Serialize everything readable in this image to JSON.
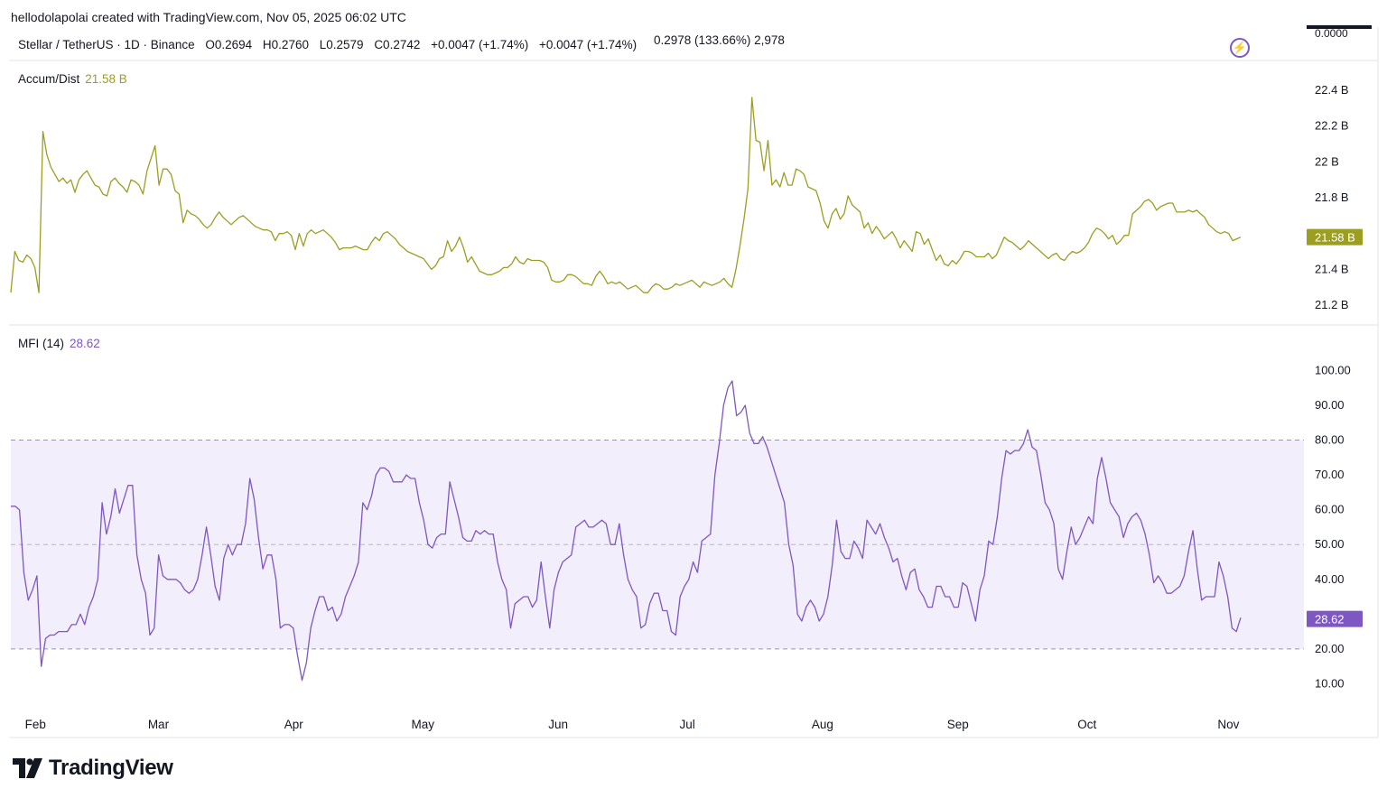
{
  "header": {
    "credit": "hellodolapolai created with TradingView.com, Nov 05, 2025 06:02 UTC",
    "symbol": "Stellar / TetherUS · 1D · Binance",
    "open": "O0.2694",
    "high": "H0.2760",
    "low": "L0.2579",
    "close": "C0.2742",
    "change1": "+0.0047 (+1.74%)",
    "change2": "+0.0047 (+1.74%)",
    "extra": "0.2978 (133.66%) 2,978",
    "top_scale_value": "0.0000",
    "bolt_icon": "lightning-bolt-icon"
  },
  "accum_dist": {
    "label": "Accum/Dist",
    "value_label": "21.58 B",
    "color": "#9c9e22",
    "ticks": [
      "22.4 B",
      "22.2 B",
      "22 B",
      "21.8 B",
      "21.4 B",
      "21.2 B"
    ]
  },
  "mfi": {
    "label": "MFI (14)",
    "value_label": "28.62",
    "color": "#7e57c2",
    "band_color": "#f2eefb",
    "ticks": [
      "100.00",
      "90.00",
      "80.00",
      "70.00",
      "60.00",
      "50.00",
      "40.00",
      "20.00",
      "10.00"
    ]
  },
  "x_axis": [
    "Feb",
    "Mar",
    "Apr",
    "May",
    "Jun",
    "Jul",
    "Aug",
    "Sep",
    "Oct",
    "Nov"
  ],
  "brand": "TradingView",
  "chart_data": [
    {
      "type": "line",
      "title": "Accum/Dist",
      "x_labels": [
        "Feb",
        "Mar",
        "Apr",
        "May",
        "Jun",
        "Jul",
        "Aug",
        "Sep",
        "Oct",
        "Nov"
      ],
      "ylim": [
        21.15,
        22.45
      ],
      "y_unit": "B",
      "last_value": 21.58,
      "series": [
        {
          "values": [
            21.27,
            21.5,
            21.45,
            21.44,
            21.48,
            21.46,
            21.41,
            21.27,
            22.17,
            22.04,
            21.97,
            21.93,
            21.89,
            21.91,
            21.88,
            21.9,
            21.83,
            21.9,
            21.93,
            21.95,
            21.91,
            21.87,
            21.86,
            21.82,
            21.81,
            21.89,
            21.91,
            21.88,
            21.86,
            21.83,
            21.9,
            21.89,
            21.87,
            21.82,
            21.95,
            22.02,
            22.09,
            21.87,
            21.96,
            21.96,
            21.93,
            21.84,
            21.82,
            21.66,
            21.73,
            21.71,
            21.7,
            21.68,
            21.65,
            21.63,
            21.65,
            21.69,
            21.72,
            21.69,
            21.67,
            21.65,
            21.67,
            21.69,
            21.7,
            21.68,
            21.66,
            21.64,
            21.63,
            21.62,
            21.62,
            21.61,
            21.56,
            21.6,
            21.6,
            21.61,
            21.59,
            21.51,
            21.6,
            21.53,
            21.6,
            21.62,
            21.6,
            21.61,
            21.62,
            21.6,
            21.58,
            21.55,
            21.51,
            21.52,
            21.52,
            21.52,
            21.53,
            21.52,
            21.51,
            21.51,
            21.55,
            21.58,
            21.56,
            21.6,
            21.61,
            21.59,
            21.57,
            21.54,
            21.52,
            21.5,
            21.49,
            21.48,
            21.47,
            21.46,
            21.43,
            21.4,
            21.42,
            21.46,
            21.47,
            21.56,
            21.5,
            21.53,
            21.58,
            21.52,
            21.44,
            21.47,
            21.43,
            21.39,
            21.38,
            21.37,
            21.37,
            21.38,
            21.39,
            21.41,
            21.41,
            21.43,
            21.47,
            21.44,
            21.43,
            21.46,
            21.45,
            21.45,
            21.45,
            21.44,
            21.41,
            21.34,
            21.33,
            21.33,
            21.34,
            21.37,
            21.37,
            21.36,
            21.34,
            21.32,
            21.32,
            21.31,
            21.36,
            21.39,
            21.36,
            21.32,
            21.33,
            21.32,
            21.33,
            21.31,
            21.29,
            21.3,
            21.31,
            21.29,
            21.27,
            21.27,
            21.3,
            21.32,
            21.31,
            21.29,
            21.29,
            21.3,
            21.32,
            21.31,
            21.32,
            21.33,
            21.34,
            21.32,
            21.3,
            21.33,
            21.32,
            21.31,
            21.32,
            21.33,
            21.35,
            21.32,
            21.3,
            21.4,
            21.53,
            21.68,
            21.85,
            22.36,
            22.12,
            22.11,
            21.95,
            22.12,
            21.87,
            21.9,
            21.86,
            21.94,
            21.87,
            21.87,
            21.96,
            21.95,
            21.93,
            21.86,
            21.85,
            21.84,
            21.77,
            21.67,
            21.63,
            21.71,
            21.74,
            21.68,
            21.71,
            21.81,
            21.76,
            21.74,
            21.72,
            21.63,
            21.66,
            21.6,
            21.64,
            21.61,
            21.57,
            21.59,
            21.61,
            21.57,
            21.52,
            21.56,
            21.53,
            21.5,
            21.61,
            21.6,
            21.54,
            21.57,
            21.51,
            21.45,
            21.48,
            21.43,
            21.42,
            21.45,
            21.43,
            21.46,
            21.5,
            21.5,
            21.49,
            21.47,
            21.47,
            21.47,
            21.49,
            21.46,
            21.48,
            21.53,
            21.58,
            21.56,
            21.55,
            21.53,
            21.51,
            21.53,
            21.56,
            21.54,
            21.52,
            21.5,
            21.48,
            21.46,
            21.48,
            21.49,
            21.46,
            21.45,
            21.48,
            21.5,
            21.49,
            21.5,
            21.52,
            21.55,
            21.6,
            21.63,
            21.62,
            21.6,
            21.57,
            21.59,
            21.54,
            21.56,
            21.59,
            21.59,
            21.71,
            21.73,
            21.75,
            21.78,
            21.79,
            21.77,
            21.73,
            21.75,
            21.76,
            21.77,
            21.77,
            21.72,
            21.72,
            21.72,
            21.73,
            21.72,
            21.73,
            21.71,
            21.69,
            21.65,
            21.63,
            21.61,
            21.6,
            21.61,
            21.6,
            21.56,
            21.57,
            21.58
          ]
        }
      ]
    },
    {
      "type": "line",
      "title": "MFI (14)",
      "x_labels": [
        "Feb",
        "Mar",
        "Apr",
        "May",
        "Jun",
        "Jul",
        "Aug",
        "Sep",
        "Oct",
        "Nov"
      ],
      "ylim": [
        0,
        104
      ],
      "bands": [
        20,
        50,
        80
      ],
      "last_value": 28.62,
      "series": [
        {
          "values": [
            61,
            61,
            60,
            42,
            34,
            37,
            41,
            15,
            23,
            24,
            24,
            25,
            25,
            25,
            27,
            27,
            30,
            27,
            32,
            35,
            40,
            62,
            53,
            58,
            66,
            59,
            63,
            67,
            67,
            47,
            40,
            36,
            24,
            26,
            47,
            41,
            40,
            40,
            40,
            39,
            37,
            36,
            37,
            40,
            47,
            55,
            47,
            38,
            34,
            46,
            50,
            47,
            50,
            50,
            56,
            69,
            63,
            52,
            43,
            47,
            47,
            40,
            26,
            27,
            27,
            26,
            18,
            11,
            16,
            26,
            31,
            35,
            35,
            31,
            32,
            28,
            30,
            35,
            38,
            41,
            45,
            62,
            60,
            64,
            70,
            72,
            72,
            71,
            68,
            68,
            68,
            70,
            69,
            69,
            62,
            57,
            50,
            49,
            52,
            53,
            53,
            68,
            63,
            58,
            52,
            51,
            51,
            54,
            53,
            54,
            53,
            53,
            45,
            40,
            37,
            26,
            33,
            34,
            35,
            35,
            32,
            34,
            45,
            35,
            26,
            37,
            42,
            45,
            46,
            47,
            55,
            56,
            57,
            55,
            55,
            56,
            57,
            56,
            50,
            50,
            56,
            47,
            40,
            37,
            35,
            26,
            27,
            33,
            36,
            36,
            31,
            31,
            25,
            24,
            35,
            38,
            40,
            45,
            42,
            51,
            52,
            53,
            70,
            79,
            90,
            95,
            97,
            87,
            88,
            90,
            82,
            79,
            79,
            81,
            78,
            74,
            70,
            66,
            62,
            50,
            44,
            30,
            28,
            32,
            34,
            32,
            28,
            30,
            35,
            44,
            57,
            48,
            46,
            46,
            51,
            49,
            46,
            57,
            55,
            53,
            56,
            52,
            49,
            45,
            46,
            41,
            37,
            42,
            43,
            37,
            35,
            32,
            32,
            38,
            38,
            35,
            35,
            32,
            32,
            39,
            38,
            33,
            28,
            37,
            41,
            51,
            50,
            58,
            69,
            77,
            76,
            77,
            77,
            79,
            83,
            78,
            77,
            70,
            62,
            60,
            56,
            43,
            40,
            48,
            55,
            50,
            52,
            55,
            58,
            56,
            69,
            75,
            69,
            62,
            60,
            58,
            52,
            56,
            58,
            59,
            57,
            53,
            47,
            39,
            41,
            39,
            36,
            36,
            37,
            38,
            41,
            48,
            54,
            43,
            34,
            35,
            35,
            35,
            45,
            41,
            35,
            26,
            25,
            29
          ]
        }
      ]
    }
  ]
}
